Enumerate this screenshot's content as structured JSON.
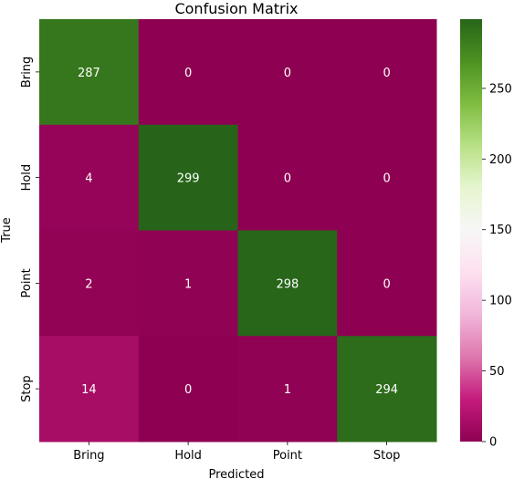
{
  "chart_data": {
    "type": "heatmap",
    "title": "Confusion Matrix",
    "xlabel": "Predicted",
    "ylabel": "True",
    "x_categories": [
      "Bring",
      "Hold",
      "Point",
      "Stop"
    ],
    "y_categories": [
      "Bring",
      "Hold",
      "Point",
      "Stop"
    ],
    "values": [
      [
        287,
        0,
        0,
        0
      ],
      [
        4,
        299,
        0,
        0
      ],
      [
        2,
        1,
        298,
        0
      ],
      [
        14,
        0,
        1,
        294
      ]
    ],
    "colormap": "PiYG",
    "colorbar": {
      "range": [
        0,
        299
      ],
      "ticks": [
        0,
        50,
        100,
        150,
        200,
        250
      ]
    },
    "annotate": true
  }
}
